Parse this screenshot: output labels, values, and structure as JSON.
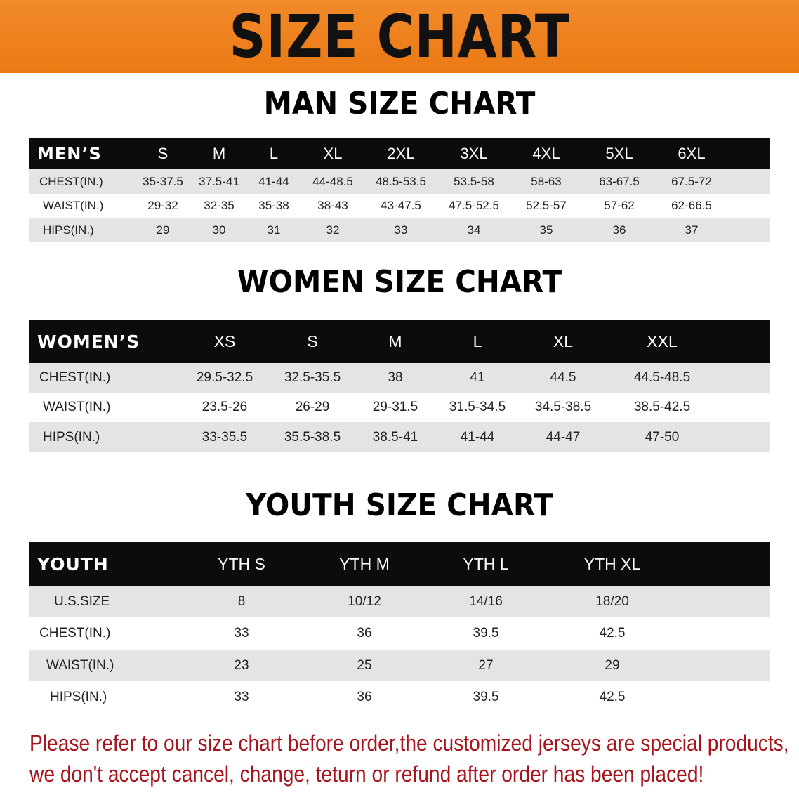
{
  "banner_title": "SIZE CHART",
  "men": {
    "title": "MAN SIZE CHART",
    "header": [
      "MEN’S",
      "S",
      "M",
      "L",
      "XL",
      "2XL",
      "3XL",
      "4XL",
      "5XL",
      "6XL"
    ],
    "rows": [
      [
        "CHEST(IN.)",
        "35-37.5",
        "37.5-41",
        "41-44",
        "44-48.5",
        "48.5-53.5",
        "53.5-58",
        "58-63",
        "63-67.5",
        "67.5-72"
      ],
      [
        "WAIST(IN.)",
        "29-32",
        "32-35",
        "35-38",
        "38-43",
        "43-47.5",
        "47.5-52.5",
        "52.5-57",
        "57-62",
        "62-66.5"
      ],
      [
        "HIPS(IN.)",
        "29",
        "30",
        "31",
        "32",
        "33",
        "34",
        "35",
        "36",
        "37"
      ]
    ]
  },
  "women": {
    "title": "WOMEN SIZE CHART",
    "header": [
      "WOMEN’S",
      "XS",
      "S",
      "M",
      "L",
      "XL",
      "XXL"
    ],
    "rows": [
      [
        "CHEST(IN.)",
        "29.5-32.5",
        "32.5-35.5",
        "38",
        "41",
        "44.5",
        "44.5-48.5"
      ],
      [
        "WAIST(IN.)",
        "23.5-26",
        "26-29",
        "29-31.5",
        "31.5-34.5",
        "34.5-38.5",
        "38.5-42.5"
      ],
      [
        "HIPS(IN.)",
        "33-35.5",
        "35.5-38.5",
        "38.5-41",
        "41-44",
        "44-47",
        "47-50"
      ]
    ]
  },
  "youth": {
    "title": "YOUTH SIZE CHART",
    "header": [
      "YOUTH",
      "YTH S",
      "YTH M",
      "YTH L",
      "YTH XL"
    ],
    "rows": [
      [
        "U.S.SIZE",
        "8",
        "10/12",
        "14/16",
        "18/20"
      ],
      [
        "CHEST(IN.)",
        "33",
        "36",
        "39.5",
        "42.5"
      ],
      [
        "WAIST(IN.)",
        "23",
        "25",
        "27",
        "29"
      ],
      [
        "HIPS(IN.)",
        "33",
        "36",
        "39.5",
        "42.5"
      ]
    ]
  },
  "note": {
    "line1": "Please refer to our size chart before order,the customized jerseys are special products,",
    "line2": "we don't accept cancel, change, teturn or refund after order has been placed!"
  },
  "colors": {
    "banner": "#ee8020",
    "header_row": "#0c0c0c",
    "stripe": "#e4e4e4",
    "note": "#a8141c"
  }
}
